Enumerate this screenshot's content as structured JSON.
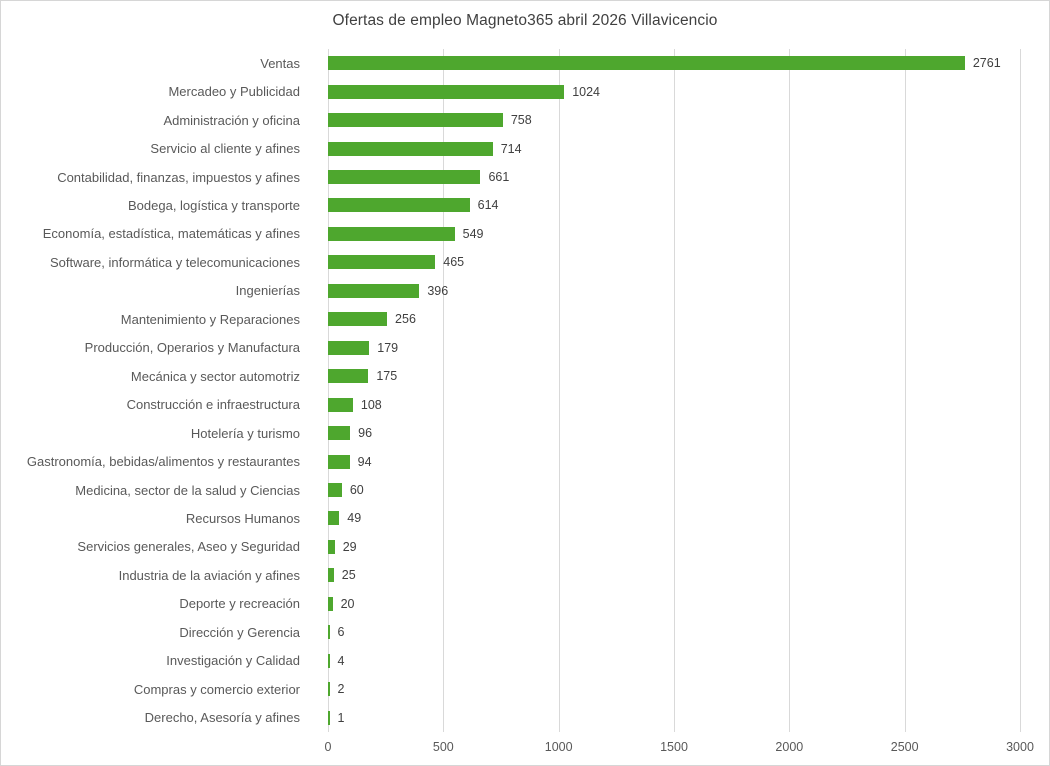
{
  "title": "Ofertas de empleo Magneto365 abril 2026 Villavicencio",
  "colors": {
    "bar": "#4EA72E",
    "gridline": "#D9D9D9",
    "category_label": "#595959",
    "value_label": "#404040",
    "title": "#404040",
    "border": "#D6D6D6"
  },
  "chart_data": {
    "type": "bar",
    "orientation": "horizontal",
    "title": "Ofertas de empleo Magneto365 abril 2026 Villavicencio",
    "xlabel": "",
    "ylabel": "",
    "xlim": [
      0,
      3000
    ],
    "x_ticks": [
      0,
      500,
      1000,
      1500,
      2000,
      2500,
      3000
    ],
    "grid": true,
    "legend": false,
    "categories": [
      "Ventas",
      "Mercadeo y Publicidad",
      "Administración y oficina",
      "Servicio al cliente y afines",
      "Contabilidad, finanzas, impuestos y afines",
      "Bodega, logística y transporte",
      "Economía, estadística, matemáticas y afines",
      "Software, informática y telecomunicaciones",
      "Ingenierías",
      "Mantenimiento y Reparaciones",
      "Producción, Operarios y Manufactura",
      "Mecánica y sector automotriz",
      "Construcción e infraestructura",
      "Hotelería y turismo",
      "Gastronomía, bebidas/alimentos y restaurantes",
      "Medicina, sector de la salud y Ciencias",
      "Recursos Humanos",
      "Servicios generales, Aseo y Seguridad",
      "Industria de la aviación y afines",
      "Deporte y recreación",
      "Dirección y Gerencia",
      "Investigación y Calidad",
      "Compras y comercio exterior",
      "Derecho, Asesoría y afines"
    ],
    "values": [
      2761,
      1024,
      758,
      714,
      661,
      614,
      549,
      465,
      396,
      256,
      179,
      175,
      108,
      96,
      94,
      60,
      49,
      29,
      25,
      20,
      6,
      4,
      2,
      1
    ]
  }
}
